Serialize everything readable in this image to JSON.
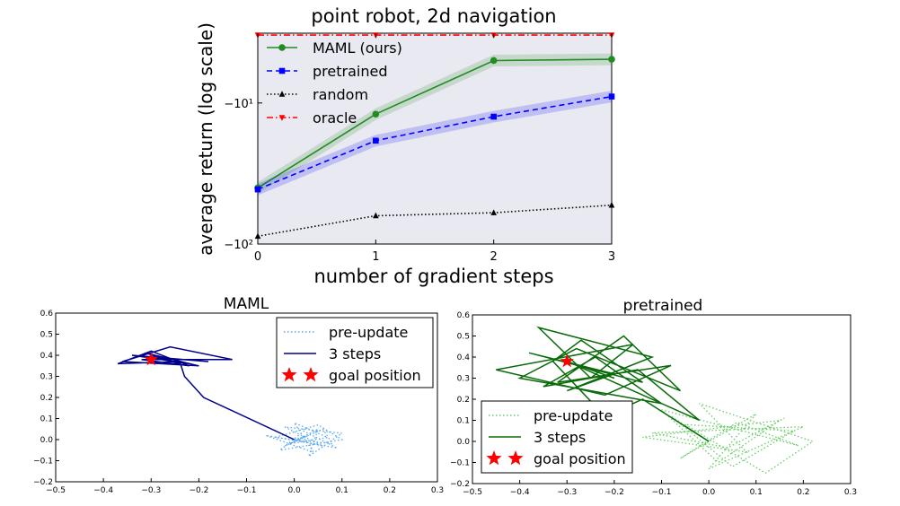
{
  "chart_data": [
    {
      "type": "line",
      "title": "point robot, 2d navigation",
      "xlabel": "number of gradient steps",
      "ylabel": "average return (log scale)",
      "yscale": "symlog (negative)",
      "x": [
        0,
        1,
        2,
        3
      ],
      "xticks": [
        "0",
        "1",
        "2",
        "3"
      ],
      "yticks": [
        "−10¹",
        "−10²"
      ],
      "xlim": [
        0,
        3
      ],
      "ylim": [
        -100,
        -3.2
      ],
      "grid": false,
      "background": "#e9e9f1",
      "legend_position": "upper-left",
      "series": [
        {
          "name": "MAML (ours)",
          "values": [
            -40,
            -12,
            -5.0,
            -4.9
          ],
          "color": "#228b22",
          "style": "solid",
          "marker": "circle",
          "band": true
        },
        {
          "name": "pretrained",
          "values": [
            -41,
            -18.5,
            -12.5,
            -9.0
          ],
          "color": "#0000ff",
          "style": "dashed",
          "marker": "square",
          "band": true
        },
        {
          "name": "random",
          "values": [
            -88,
            -63,
            -60,
            -53
          ],
          "color": "#000000",
          "style": "dotted",
          "marker": "triangle-up"
        },
        {
          "name": "oracle",
          "values": [
            -3.3,
            -3.3,
            -3.3,
            -3.3
          ],
          "color": "#ff0000",
          "style": "dashdot",
          "marker": "triangle-down"
        }
      ]
    },
    {
      "type": "line",
      "title": "MAML",
      "xlim": [
        -0.5,
        0.3
      ],
      "ylim": [
        -0.2,
        0.6
      ],
      "xticks": [
        "−0.5",
        "−0.4",
        "−0.3",
        "−0.2",
        "−0.1",
        "0.0",
        "0.1",
        "0.2",
        "0.3"
      ],
      "yticks": [
        "−0.2",
        "−0.1",
        "0.0",
        "0.1",
        "0.2",
        "0.3",
        "0.4",
        "0.5",
        "0.6"
      ],
      "legend_position": "upper-right",
      "goal": {
        "x": -0.3,
        "y": 0.38,
        "color": "#ff0000"
      },
      "series": [
        {
          "name": "pre-update",
          "color": "#5aa8f0",
          "style": "dotted",
          "x": [
            0.0,
            0.03,
            -0.02,
            0.06,
            0.08,
            -0.04,
            0.05,
            0.1,
            -0.03,
            0.02,
            0.09,
            -0.06,
            0.04,
            0.0,
            0.07,
            -0.01,
            0.05,
            0.03,
            0.1,
            -0.02,
            0.06,
            0.0
          ],
          "y": [
            0.0,
            0.02,
            -0.03,
            0.05,
            -0.02,
            0.01,
            0.07,
            0.0,
            -0.05,
            0.04,
            -0.04,
            0.02,
            -0.06,
            0.08,
            0.01,
            -0.02,
            0.05,
            -0.08,
            0.03,
            0.06,
            -0.03,
            0.0
          ]
        },
        {
          "name": "3 steps",
          "color": "#00008b",
          "style": "solid",
          "x": [
            0.0,
            -0.19,
            -0.23,
            -0.24,
            -0.37,
            -0.3,
            -0.22,
            -0.32,
            -0.13,
            -0.26,
            -0.36,
            -0.2,
            -0.31,
            -0.24,
            -0.29,
            -0.18,
            -0.34,
            -0.22
          ],
          "y": [
            0.0,
            0.2,
            0.3,
            0.37,
            0.36,
            0.42,
            0.35,
            0.38,
            0.38,
            0.44,
            0.37,
            0.35,
            0.41,
            0.36,
            0.39,
            0.37,
            0.4,
            0.36
          ]
        }
      ],
      "legend_labels": [
        "pre-update",
        "3 steps",
        "goal position"
      ]
    },
    {
      "type": "line",
      "title": "pretrained",
      "xlim": [
        -0.5,
        0.3
      ],
      "ylim": [
        -0.2,
        0.6
      ],
      "xticks": [
        "−0.5",
        "−0.4",
        "−0.3",
        "−0.2",
        "−0.1",
        "0.0",
        "0.1",
        "0.2",
        "0.3"
      ],
      "yticks": [
        "−0.2",
        "−0.1",
        "0.0",
        "0.1",
        "0.2",
        "0.3",
        "0.4",
        "0.5",
        "0.6"
      ],
      "legend_position": "lower-left",
      "goal": {
        "x": -0.3,
        "y": 0.38,
        "color": "#ff0000"
      },
      "series": [
        {
          "name": "pre-update",
          "color": "#66cc66",
          "style": "dotted",
          "x": [
            0.0,
            -0.08,
            0.05,
            0.18,
            -0.05,
            0.12,
            0.22,
            -0.02,
            0.08,
            -0.14,
            0.15,
            0.02,
            -0.1,
            0.19,
            0.06,
            -0.06,
            0.1,
            0.0,
            0.2,
            -0.12,
            0.04,
            0.16
          ],
          "y": [
            0.0,
            0.12,
            -0.12,
            0.05,
            0.08,
            -0.15,
            0.0,
            0.18,
            -0.05,
            0.02,
            0.1,
            -0.1,
            0.15,
            -0.02,
            0.09,
            -0.08,
            0.13,
            -0.13,
            0.07,
            0.04,
            -0.03,
            0.11
          ]
        },
        {
          "name": "3 steps",
          "color": "#0a6b0a",
          "style": "solid",
          "x": [
            0.0,
            -0.14,
            -0.22,
            -0.33,
            -0.27,
            -0.14,
            -0.38,
            -0.2,
            -0.3,
            -0.12,
            -0.36,
            -0.25,
            -0.16,
            -0.45,
            -0.22,
            -0.08,
            -0.32,
            -0.18,
            -0.06,
            -0.28,
            -0.4,
            -0.1,
            -0.24,
            -0.35,
            -0.15,
            -0.02,
            -0.3,
            -0.2
          ],
          "y": [
            0.0,
            0.2,
            0.12,
            0.38,
            0.48,
            0.28,
            0.42,
            0.32,
            0.24,
            0.4,
            0.54,
            0.3,
            0.46,
            0.34,
            0.22,
            0.36,
            0.28,
            0.5,
            0.24,
            0.44,
            0.3,
            0.18,
            0.4,
            0.26,
            0.34,
            0.1,
            0.38,
            0.3
          ]
        }
      ],
      "legend_labels": [
        "pre-update",
        "3 steps",
        "goal position"
      ]
    }
  ]
}
